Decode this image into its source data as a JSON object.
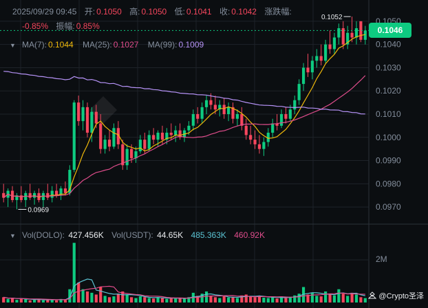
{
  "header": {
    "datetime": "2025/09/29 09:45",
    "open_label": "开:",
    "open": "0.1050",
    "high_label": "高:",
    "high": "0.1050",
    "low_label": "低:",
    "low": "0.1041",
    "close_label": "收:",
    "close": "0.1042",
    "change_label": "涨跌幅:",
    "change": "-0.85%",
    "amplitude_label": "振幅:",
    "amplitude": "0.85%"
  },
  "ma": {
    "ma7_label": "MA(7):",
    "ma7": "0.1044",
    "ma25_label": "MA(25):",
    "ma25": "0.1027",
    "ma99_label": "MA(99):",
    "ma99": "0.1009",
    "colors": {
      "ma7": "#f0b90b",
      "ma25": "#e04d8c",
      "ma99": "#b693f7"
    }
  },
  "volume": {
    "vol_dolo_label": "Vol(DOLO):",
    "vol_dolo": "427.456K",
    "vol_usdt_label": "Vol(USDT):",
    "vol_usdt": "44.65K",
    "ma1": "485.363K",
    "ma2": "460.92K",
    "axis_label": "2M"
  },
  "price_axis": {
    "ticks": [
      "0.1050",
      "0.1040",
      "0.1030",
      "0.1020",
      "0.1010",
      "0.1000",
      "0.0990",
      "0.0980",
      "0.0970"
    ],
    "current_price": "0.1046"
  },
  "annotations": {
    "high_mark": "0.1052",
    "low_mark": "0.0969"
  },
  "watermark": "@Crypto圣泽",
  "colors": {
    "up": "#0ecb81",
    "down": "#f6465d",
    "bg": "#0b0e11",
    "grid": "#1e2329"
  },
  "chart_data": {
    "type": "candlestick",
    "ylim": [
      0.0965,
      0.1055
    ],
    "candles": [
      [
        0.0976,
        0.098,
        0.0972,
        0.0974
      ],
      [
        0.0974,
        0.0978,
        0.097,
        0.0977
      ],
      [
        0.0977,
        0.0979,
        0.0972,
        0.0973
      ],
      [
        0.0973,
        0.0976,
        0.0969,
        0.0975
      ],
      [
        0.0975,
        0.0979,
        0.0972,
        0.0973
      ],
      [
        0.0973,
        0.0977,
        0.097,
        0.0976
      ],
      [
        0.0976,
        0.098,
        0.0973,
        0.0974
      ],
      [
        0.0974,
        0.0977,
        0.0971,
        0.0976
      ],
      [
        0.0976,
        0.0978,
        0.0972,
        0.0973
      ],
      [
        0.0973,
        0.0977,
        0.097,
        0.0976
      ],
      [
        0.0976,
        0.098,
        0.0973,
        0.0974
      ],
      [
        0.0974,
        0.0979,
        0.0972,
        0.0977
      ],
      [
        0.0977,
        0.098,
        0.0974,
        0.0975
      ],
      [
        0.0975,
        0.0979,
        0.0973,
        0.0978
      ],
      [
        0.0978,
        0.0981,
        0.0975,
        0.0976
      ],
      [
        0.0976,
        0.0988,
        0.0975,
        0.0986
      ],
      [
        0.0986,
        0.1016,
        0.0985,
        0.1015
      ],
      [
        0.1015,
        0.1018,
        0.1005,
        0.1007
      ],
      [
        0.1007,
        0.1016,
        0.1003,
        0.1013
      ],
      [
        0.1013,
        0.1015,
        0.1,
        0.1002
      ],
      [
        0.1002,
        0.1013,
        0.0998,
        0.1011
      ],
      [
        0.1011,
        0.1014,
        0.1004,
        0.1006
      ],
      [
        0.1006,
        0.101,
        0.0993,
        0.0995
      ],
      [
        0.0995,
        0.1001,
        0.0993,
        0.0999
      ],
      [
        0.0999,
        0.1003,
        0.0994,
        0.0996
      ],
      [
        0.0996,
        0.1006,
        0.0995,
        0.1004
      ],
      [
        0.1004,
        0.1007,
        0.0995,
        0.0997
      ],
      [
        0.0997,
        0.0999,
        0.0986,
        0.0988
      ],
      [
        0.0988,
        0.0997,
        0.0986,
        0.0995
      ],
      [
        0.0995,
        0.0997,
        0.0989,
        0.0991
      ],
      [
        0.0991,
        0.0996,
        0.0989,
        0.0994
      ],
      [
        0.0994,
        0.1001,
        0.0993,
        0.0999
      ],
      [
        0.0999,
        0.1002,
        0.0993,
        0.0995
      ],
      [
        0.0995,
        0.1003,
        0.0994,
        0.1001
      ],
      [
        0.1001,
        0.1004,
        0.0997,
        0.0999
      ],
      [
        0.0999,
        0.1003,
        0.0996,
        0.1002
      ],
      [
        0.1002,
        0.1005,
        0.0997,
        0.0999
      ],
      [
        0.0999,
        0.1004,
        0.0997,
        0.1002
      ],
      [
        0.1002,
        0.1006,
        0.0999,
        0.1001
      ],
      [
        0.1001,
        0.1005,
        0.0998,
        0.1003
      ],
      [
        0.1003,
        0.1006,
        0.0999,
        0.1
      ],
      [
        0.1,
        0.1004,
        0.0998,
        0.1003
      ],
      [
        0.1003,
        0.1007,
        0.1001,
        0.1005
      ],
      [
        0.1005,
        0.1012,
        0.1003,
        0.101
      ],
      [
        0.101,
        0.1013,
        0.1006,
        0.1008
      ],
      [
        0.1008,
        0.1015,
        0.1006,
        0.1013
      ],
      [
        0.1013,
        0.1018,
        0.101,
        0.1016
      ],
      [
        0.1016,
        0.1019,
        0.1012,
        0.1014
      ],
      [
        0.1014,
        0.1018,
        0.101,
        0.1012
      ],
      [
        0.1012,
        0.1016,
        0.1009,
        0.1014
      ],
      [
        0.1014,
        0.1017,
        0.1008,
        0.101
      ],
      [
        0.101,
        0.1015,
        0.1007,
        0.1013
      ],
      [
        0.1013,
        0.1015,
        0.1006,
        0.1008
      ],
      [
        0.1008,
        0.1012,
        0.1005,
        0.101
      ],
      [
        0.101,
        0.1013,
        0.1003,
        0.1005
      ],
      [
        0.1005,
        0.1008,
        0.0999,
        0.1001
      ],
      [
        0.1001,
        0.1005,
        0.0997,
        0.0999
      ],
      [
        0.0999,
        0.1003,
        0.0995,
        0.0997
      ],
      [
        0.0997,
        0.1001,
        0.0993,
        0.0995
      ],
      [
        0.0995,
        0.1,
        0.0992,
        0.0998
      ],
      [
        0.0998,
        0.1004,
        0.0996,
        0.1002
      ],
      [
        0.1002,
        0.1008,
        0.1,
        0.1006
      ],
      [
        0.1006,
        0.101,
        0.1003,
        0.1005
      ],
      [
        0.1005,
        0.1012,
        0.1004,
        0.101
      ],
      [
        0.101,
        0.1013,
        0.1006,
        0.1008
      ],
      [
        0.1008,
        0.1014,
        0.1007,
        0.1012
      ],
      [
        0.1012,
        0.1018,
        0.101,
        0.1016
      ],
      [
        0.1016,
        0.1025,
        0.1014,
        0.1023
      ],
      [
        0.1023,
        0.1032,
        0.102,
        0.103
      ],
      [
        0.103,
        0.1036,
        0.1026,
        0.1028
      ],
      [
        0.1028,
        0.1035,
        0.1025,
        0.1033
      ],
      [
        0.1033,
        0.1038,
        0.103,
        0.1035
      ],
      [
        0.1035,
        0.104,
        0.1031,
        0.1033
      ],
      [
        0.1033,
        0.1042,
        0.1032,
        0.104
      ],
      [
        0.104,
        0.1046,
        0.1036,
        0.1038
      ],
      [
        0.1038,
        0.1045,
        0.1036,
        0.1043
      ],
      [
        0.1043,
        0.1049,
        0.104,
        0.1047
      ],
      [
        0.1047,
        0.105,
        0.1038,
        0.104
      ],
      [
        0.104,
        0.1048,
        0.1038,
        0.1045
      ],
      [
        0.1045,
        0.1052,
        0.1041,
        0.1043
      ],
      [
        0.1043,
        0.105,
        0.104,
        0.1047
      ],
      [
        0.105,
        0.105,
        0.1041,
        0.1042
      ],
      [
        0.1042,
        0.1048,
        0.104,
        0.1046
      ]
    ],
    "volumes": [
      0.12,
      0.08,
      0.1,
      0.06,
      0.09,
      0.07,
      0.05,
      0.06,
      0.08,
      0.05,
      0.07,
      0.06,
      0.05,
      0.08,
      0.06,
      0.3,
      1.35,
      0.45,
      0.3,
      0.25,
      0.22,
      0.18,
      0.35,
      0.15,
      0.12,
      0.14,
      0.2,
      0.25,
      0.18,
      0.12,
      0.1,
      0.14,
      0.12,
      0.1,
      0.09,
      0.12,
      0.1,
      0.08,
      0.11,
      0.09,
      0.1,
      0.09,
      0.12,
      0.22,
      0.15,
      0.2,
      0.25,
      0.15,
      0.12,
      0.1,
      0.14,
      0.11,
      0.13,
      0.1,
      0.16,
      0.18,
      0.14,
      0.12,
      0.15,
      0.11,
      0.1,
      0.12,
      0.09,
      0.14,
      0.1,
      0.13,
      0.16,
      0.2,
      0.35,
      0.18,
      0.22,
      0.15,
      0.14,
      0.25,
      0.18,
      0.16,
      0.3,
      0.2,
      0.15,
      0.22,
      0.18,
      0.12,
      0.1
    ]
  }
}
